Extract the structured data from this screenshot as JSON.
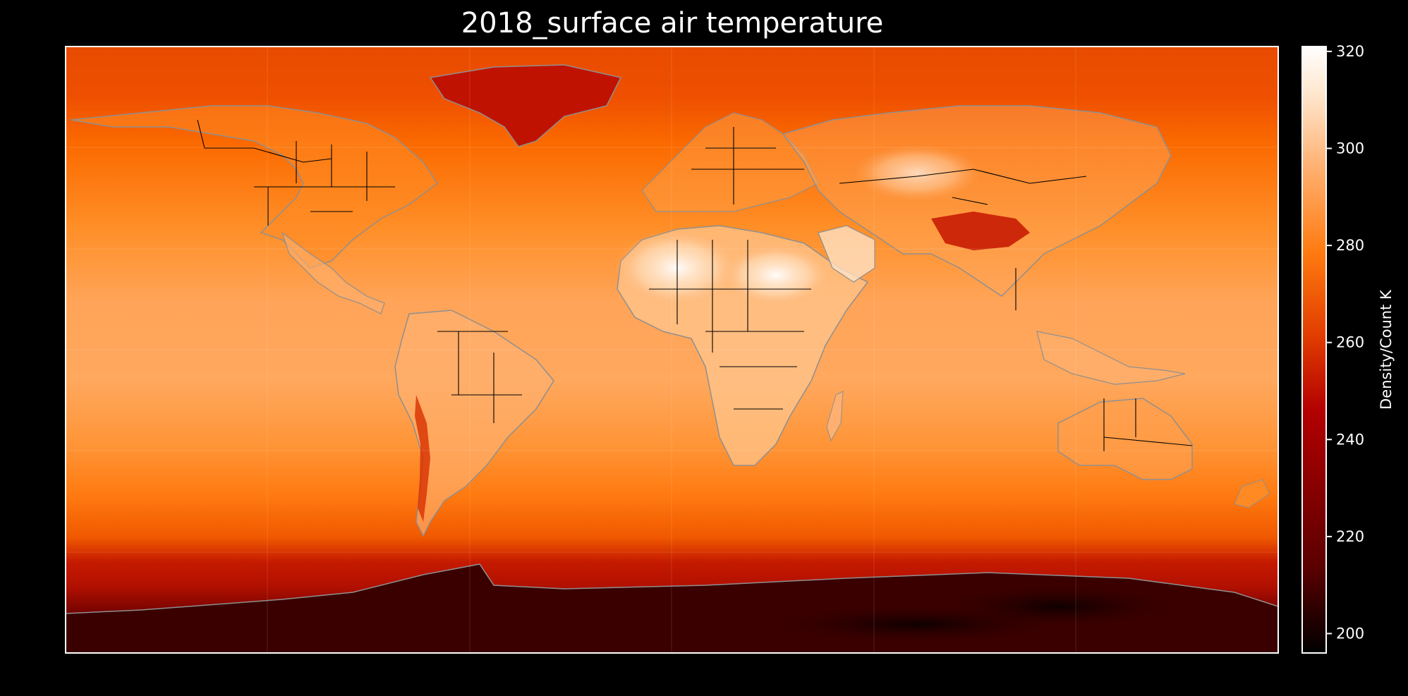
{
  "title": "2018_surface air temperature",
  "colorbar": {
    "label": "Density/Count K",
    "min": 196,
    "max": 321,
    "ticks": [
      200,
      220,
      240,
      260,
      280,
      300,
      320
    ],
    "colormap": "gist_heat",
    "colors": [
      "#000000",
      "#5a0000",
      "#b30000",
      "#e03c00",
      "#ff7a10",
      "#ffb070",
      "#ffe6cc",
      "#ffffff"
    ]
  },
  "map": {
    "projection": "equirectangular",
    "lon_range": [
      -180,
      180
    ],
    "lat_range": [
      -90,
      90
    ],
    "coastline_color": "#8f8f8f",
    "border_color": "#000000",
    "gridlines": true
  }
}
